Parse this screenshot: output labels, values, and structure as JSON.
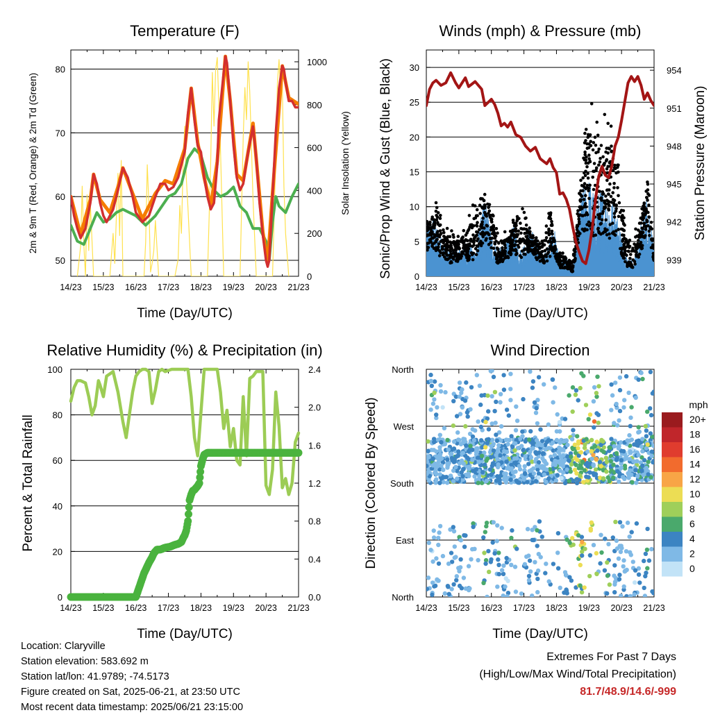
{
  "chart_data": [
    {
      "type": "line",
      "title": "Temperature (F)",
      "xlabel": "Time (Day/UTC)",
      "ylabel": "2m & 9m T (Red, Orange) & 2m Td (Green)",
      "ylabel_right": "Solar Insolation (Yellow)",
      "x_ticks": [
        "14/23",
        "15/23",
        "16/23",
        "17/23",
        "18/23",
        "19/23",
        "20/23",
        "21/23"
      ],
      "xlim": [
        0,
        7
      ],
      "ylim": [
        47.5,
        83
      ],
      "y_ticks": [
        50,
        60,
        70,
        80
      ],
      "ylim_right": [
        0,
        1055
      ],
      "y_ticks_right": [
        0,
        200,
        400,
        600,
        800,
        1000
      ],
      "grid": "horizontal",
      "colors": {
        "t2m": "#d32f2f",
        "t9m": "#f57c00",
        "td2m": "#4caf50",
        "solar": "#ffe14d"
      },
      "series": [
        {
          "name": "2m T",
          "axis": "left",
          "x": [
            0,
            0.1,
            0.2,
            0.3,
            0.45,
            0.6,
            0.7,
            0.8,
            0.9,
            1,
            1.1,
            1.2,
            1.3,
            1.45,
            1.6,
            1.75,
            1.9,
            2,
            2.2,
            2.4,
            2.6,
            2.75,
            2.9,
            3,
            3.15,
            3.3,
            3.5,
            3.6,
            3.7,
            3.8,
            3.9,
            4,
            4.1,
            4.2,
            4.3,
            4.4,
            4.5,
            4.55,
            4.65,
            4.75,
            4.8,
            4.9,
            5,
            5.1,
            5.2,
            5.3,
            5.45,
            5.6,
            5.7,
            5.8,
            5.9,
            6,
            6.05,
            6.1,
            6.2,
            6.3,
            6.4,
            6.5,
            6.55,
            6.6,
            6.7,
            6.8,
            6.9,
            7
          ],
          "y": [
            60,
            57,
            55,
            53.5,
            55,
            59,
            63.5,
            62,
            59,
            57,
            56,
            57,
            58,
            61,
            64.5,
            63,
            60,
            57.5,
            56,
            57,
            60,
            62,
            62,
            61,
            61.5,
            63,
            67,
            73,
            77,
            72,
            68,
            67,
            63,
            60,
            58,
            59,
            65,
            72,
            77,
            82,
            81,
            75,
            68,
            63,
            61,
            62,
            67,
            71,
            66,
            59,
            54,
            50,
            49,
            50,
            60,
            70,
            77,
            80.5,
            80,
            78,
            75,
            75,
            74,
            74
          ]
        },
        {
          "name": "9m T",
          "axis": "left",
          "x": [
            0,
            0.3,
            0.6,
            0.7,
            0.9,
            1.2,
            1.45,
            1.6,
            1.9,
            2.2,
            2.6,
            2.9,
            3.15,
            3.5,
            3.7,
            3.9,
            4.1,
            4.3,
            4.5,
            4.75,
            4.9,
            5.1,
            5.3,
            5.6,
            5.9,
            6.05,
            6.2,
            6.5,
            6.7,
            7
          ],
          "y": [
            60,
            54,
            59.5,
            63.5,
            59.5,
            57.5,
            61.5,
            64.5,
            60.5,
            56.5,
            60.5,
            62.5,
            62,
            67.5,
            77,
            68.5,
            63,
            58.5,
            65.5,
            82,
            75,
            63.5,
            62.5,
            71.5,
            54.5,
            49.5,
            60.5,
            80.5,
            75.5,
            74.5
          ]
        },
        {
          "name": "2m Td",
          "axis": "left",
          "x": [
            0,
            0.2,
            0.4,
            0.6,
            0.8,
            1,
            1.2,
            1.4,
            1.6,
            1.8,
            2,
            2.3,
            2.6,
            2.8,
            3,
            3.2,
            3.4,
            3.6,
            3.8,
            4,
            4.2,
            4.4,
            4.6,
            4.8,
            5,
            5.2,
            5.4,
            5.6,
            5.8,
            6,
            6.1,
            6.2,
            6.3,
            6.4,
            6.6,
            6.8,
            7
          ],
          "y": [
            55.5,
            53,
            52.5,
            55,
            57.5,
            56,
            56.5,
            57.5,
            58,
            57.5,
            57,
            55.5,
            57,
            58.5,
            60,
            60.5,
            62,
            66,
            67.5,
            66.5,
            63,
            61,
            60,
            60.5,
            61.5,
            58.5,
            57.5,
            55,
            55,
            53,
            50,
            56,
            60,
            58.5,
            57.5,
            60,
            62
          ]
        },
        {
          "name": "Solar Insolation",
          "axis": "right",
          "x": [
            0.2,
            0.3,
            0.35,
            0.4,
            0.45,
            0.5,
            0.55,
            0.6,
            0.7,
            1.2,
            1.3,
            1.35,
            1.4,
            1.45,
            1.5,
            1.55,
            1.6,
            1.7,
            2.25,
            2.3,
            2.35,
            2.4,
            2.45,
            2.5,
            2.55,
            2.6,
            2.7,
            3.2,
            3.3,
            3.35,
            3.4,
            3.45,
            3.5,
            3.55,
            3.6,
            3.7,
            4.2,
            4.3,
            4.35,
            4.4,
            4.45,
            4.5,
            4.55,
            4.6,
            4.7,
            5.2,
            5.3,
            5.35,
            5.4,
            5.45,
            5.5,
            5.55,
            5.6,
            5.7,
            6.2,
            6.3,
            6.35,
            6.4,
            6.45,
            6.5,
            6.55,
            6.6,
            6.7
          ],
          "y": [
            0,
            140,
            420,
            150,
            0,
            380,
            120,
            340,
            0,
            0,
            200,
            60,
            280,
            480,
            190,
            540,
            0,
            0,
            0,
            160,
            520,
            330,
            20,
            60,
            120,
            260,
            0,
            0,
            80,
            330,
            200,
            520,
            700,
            460,
            320,
            0,
            0,
            540,
            950,
            700,
            960,
            1020,
            800,
            600,
            0,
            0,
            650,
            880,
            730,
            1000,
            860,
            610,
            360,
            0,
            0,
            560,
            900,
            1010,
            850,
            900,
            420,
            200,
            0
          ]
        }
      ]
    },
    {
      "type": "line",
      "title": "Winds (mph) & Pressure (mb)",
      "xlabel": "Time (Day/UTC)",
      "ylabel": "Sonic/Prop Wind & Gust (Blue, Black)",
      "ylabel_right": "Station Pressure (Maroon)",
      "x_ticks": [
        "14/23",
        "15/23",
        "16/23",
        "17/23",
        "18/23",
        "19/23",
        "20/23",
        "21/23"
      ],
      "xlim": [
        0,
        7
      ],
      "ylim": [
        0,
        32.5
      ],
      "y_ticks": [
        0,
        5,
        10,
        15,
        20,
        25,
        30
      ],
      "ylim_right": [
        937.7,
        955.6
      ],
      "y_ticks_right": [
        939,
        942,
        945,
        948,
        951,
        954
      ],
      "grid": "horizontal",
      "colors": {
        "wind": "#4b93d1",
        "gust": "#000000",
        "pressure": "#a31515"
      },
      "series": [
        {
          "name": "Station Pressure",
          "axis": "right",
          "x": [
            0,
            0.1,
            0.2,
            0.3,
            0.45,
            0.6,
            0.75,
            0.9,
            1,
            1.2,
            1.3,
            1.5,
            1.7,
            1.8,
            2,
            2.1,
            2.2,
            2.3,
            2.4,
            2.5,
            2.6,
            2.75,
            2.9,
            3.05,
            3.2,
            3.35,
            3.5,
            3.6,
            3.7,
            3.8,
            3.9,
            4,
            4.1,
            4.2,
            4.3,
            4.4,
            4.5,
            4.6,
            4.7,
            4.8,
            4.9,
            5,
            5.1,
            5.2,
            5.3,
            5.4,
            5.5,
            5.6,
            5.7,
            5.8,
            5.9,
            6,
            6.1,
            6.2,
            6.3,
            6.4,
            6.5,
            6.6,
            6.7,
            6.8,
            6.9,
            7
          ],
          "y": [
            951.2,
            952.5,
            953,
            953.2,
            952.8,
            953,
            953.8,
            953,
            952.6,
            953.4,
            952.7,
            953.1,
            952.5,
            951.2,
            951.7,
            951.3,
            950.6,
            949.6,
            949.8,
            949.5,
            949.9,
            948.9,
            948.7,
            948,
            947.6,
            947.9,
            947,
            946.8,
            946.6,
            947,
            946.3,
            945.9,
            944.2,
            944.3,
            943.8,
            943,
            941.6,
            940.4,
            939.6,
            938.9,
            938.7,
            939.8,
            941.5,
            943.8,
            945.6,
            946.4,
            945.7,
            945.5,
            946.4,
            948,
            948.7,
            950,
            951.5,
            953,
            953.5,
            953.1,
            953.5,
            952.8,
            951.7,
            952.2,
            951.6,
            951.2
          ]
        }
      ]
    },
    {
      "type": "line",
      "title": "Relative Humidity (%) & Precipitation (in)",
      "xlabel": "Time (Day/UTC)",
      "ylabel": "Percent & Total Rainfall",
      "x_ticks": [
        "14/23",
        "15/23",
        "16/23",
        "17/23",
        "18/23",
        "19/23",
        "20/23",
        "21/23"
      ],
      "xlim": [
        0,
        7
      ],
      "ylim": [
        0,
        100
      ],
      "y_ticks": [
        0,
        20,
        40,
        60,
        80,
        100
      ],
      "ylim_right": [
        0,
        2.4
      ],
      "y_ticks_right": [
        "0.0",
        "0.4",
        "0.8",
        "1.2",
        "1.6",
        "2.0",
        "2.4"
      ],
      "grid": "horizontal",
      "colors": {
        "rh": "#9ccc55",
        "rain": "#4ab33e"
      },
      "series": [
        {
          "name": "Relative Humidity",
          "axis": "left",
          "x": [
            0,
            0.1,
            0.2,
            0.3,
            0.45,
            0.55,
            0.65,
            0.75,
            0.85,
            0.9,
            1,
            1.1,
            1.2,
            1.3,
            1.45,
            1.6,
            1.7,
            1.8,
            1.9,
            2,
            2.1,
            2.2,
            2.3,
            2.4,
            2.5,
            2.6,
            2.7,
            2.8,
            2.9,
            3.1,
            3.3,
            3.5,
            3.6,
            3.7,
            3.8,
            3.9,
            4.1,
            4.3,
            4.5,
            4.6,
            4.7,
            4.8,
            4.9,
            5,
            5.1,
            5.2,
            5.3,
            5.4,
            5.5,
            5.6,
            5.7,
            5.8,
            5.9,
            6,
            6.1,
            6.2,
            6.3,
            6.4,
            6.5,
            6.6,
            6.7,
            6.8,
            6.9,
            7
          ],
          "y": [
            86,
            92,
            95,
            95,
            94,
            88,
            80,
            84,
            95,
            93,
            88,
            97,
            98,
            99,
            90,
            77,
            70,
            80,
            90,
            97,
            99,
            100,
            100,
            99,
            85,
            91,
            99,
            100,
            99,
            100,
            100,
            100,
            100,
            88,
            70,
            62,
            100,
            100,
            100,
            90,
            74,
            82,
            66,
            74,
            60,
            58,
            88,
            62,
            96,
            97,
            99,
            99,
            99,
            49,
            45,
            56,
            90,
            75,
            48,
            52,
            45,
            50,
            68,
            72
          ]
        },
        {
          "name": "Total Rainfall",
          "axis": "right",
          "x": [
            0,
            0.5,
            1,
            1.5,
            2,
            2.05,
            2.15,
            2.25,
            2.4,
            2.5,
            2.55,
            2.65,
            2.75,
            2.9,
            3.05,
            3.2,
            3.3,
            3.4,
            3.45,
            3.5,
            3.55,
            3.6,
            3.65,
            3.7,
            3.75,
            3.8,
            3.85,
            3.9,
            3.95,
            4,
            4.05,
            4.1,
            4.2,
            4.3,
            4.4,
            4.5,
            4.6,
            4.8,
            5,
            5.5,
            6,
            6.5,
            7
          ],
          "y": [
            0,
            0,
            0,
            0,
            0,
            0.05,
            0.15,
            0.25,
            0.36,
            0.42,
            0.46,
            0.5,
            0.5,
            0.52,
            0.53,
            0.55,
            0.56,
            0.58,
            0.62,
            0.65,
            0.7,
            0.8,
            1.02,
            1.08,
            1.12,
            1.13,
            1.15,
            1.17,
            1.2,
            1.38,
            1.45,
            1.5,
            1.52,
            1.52,
            1.52,
            1.52,
            1.52,
            1.52,
            1.52,
            1.52,
            1.52,
            1.52,
            1.52
          ]
        }
      ]
    },
    {
      "type": "scatter",
      "title": "Wind Direction",
      "xlabel": "Time (Day/UTC)",
      "ylabel": "Direction (Colored By Speed)",
      "x_ticks": [
        "14/23",
        "15/23",
        "16/23",
        "17/23",
        "18/23",
        "19/23",
        "20/23",
        "21/23"
      ],
      "xlim": [
        0,
        7
      ],
      "y_ticks": [
        "North",
        "East",
        "South",
        "West",
        "North"
      ],
      "ylim": [
        0,
        360
      ],
      "grid": "horizontal",
      "legend": {
        "title": "mph",
        "position": "right",
        "labels": [
          "20+",
          "18",
          "16",
          "14",
          "12",
          "10",
          "8",
          "6",
          "4",
          "2",
          "0"
        ],
        "colors": [
          "#9a1b1e",
          "#c0262b",
          "#e03c2e",
          "#f26b2d",
          "#f8a546",
          "#ecdd54",
          "#9fcf5a",
          "#4aa96c",
          "#3c84c2",
          "#7fb9e6",
          "#c2e3f7"
        ]
      },
      "series": [
        {
          "name": "Wind direction",
          "x_range_by_day": [
            [
              0,
              7
            ]
          ],
          "dominant_direction": "South-Southwest"
        }
      ]
    }
  ],
  "info": {
    "location": "Location: Claryville",
    "elevation": "Station elevation: 583.692 m",
    "latlon": "Station lat/lon: 41.9789; -74.5173",
    "created": "Figure created on Sat, 2025-06-21, at 23:50 UTC",
    "latest": "Most recent data timestamp: 2025/06/21 23:15:00"
  },
  "extremes": {
    "title": "Extremes For Past 7 Days",
    "subtitle": "(High/Low/Max Wind/Total Precipitation)",
    "values": "81.7/48.9/14.6/-999"
  }
}
